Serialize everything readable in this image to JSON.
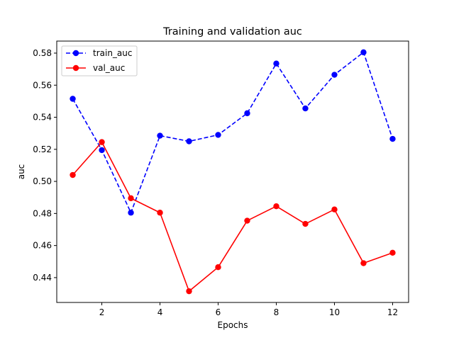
{
  "chart_data": {
    "type": "line",
    "title": "Training and validation auc",
    "xlabel": "Epochs",
    "ylabel": "auc",
    "xlim": [
      0.45,
      12.55
    ],
    "ylim": [
      0.4245,
      0.5875
    ],
    "xticks": [
      2,
      4,
      6,
      8,
      10,
      12
    ],
    "yticks": [
      0.44,
      0.46,
      0.48,
      0.5,
      0.52,
      0.54,
      0.56,
      0.58
    ],
    "ytick_labels": [
      "0.44",
      "0.46",
      "0.48",
      "0.50",
      "0.52",
      "0.54",
      "0.56",
      "0.58"
    ],
    "grid": false,
    "legend_position": "upper-left",
    "x": [
      1,
      2,
      3,
      4,
      5,
      6,
      7,
      8,
      9,
      10,
      11,
      12
    ],
    "series": [
      {
        "name": "train_auc",
        "color": "#0000ff",
        "line_style": "dashed",
        "marker": "circle",
        "values": [
          0.5515,
          0.5195,
          0.4805,
          0.5285,
          0.525,
          0.529,
          0.5425,
          0.5735,
          0.5455,
          0.5665,
          0.5805,
          0.5265
        ]
      },
      {
        "name": "val_auc",
        "color": "#ff0000",
        "line_style": "solid",
        "marker": "circle",
        "values": [
          0.504,
          0.5245,
          0.4895,
          0.4805,
          0.4315,
          0.4465,
          0.4755,
          0.4845,
          0.4735,
          0.4825,
          0.449,
          0.4555
        ]
      }
    ]
  }
}
